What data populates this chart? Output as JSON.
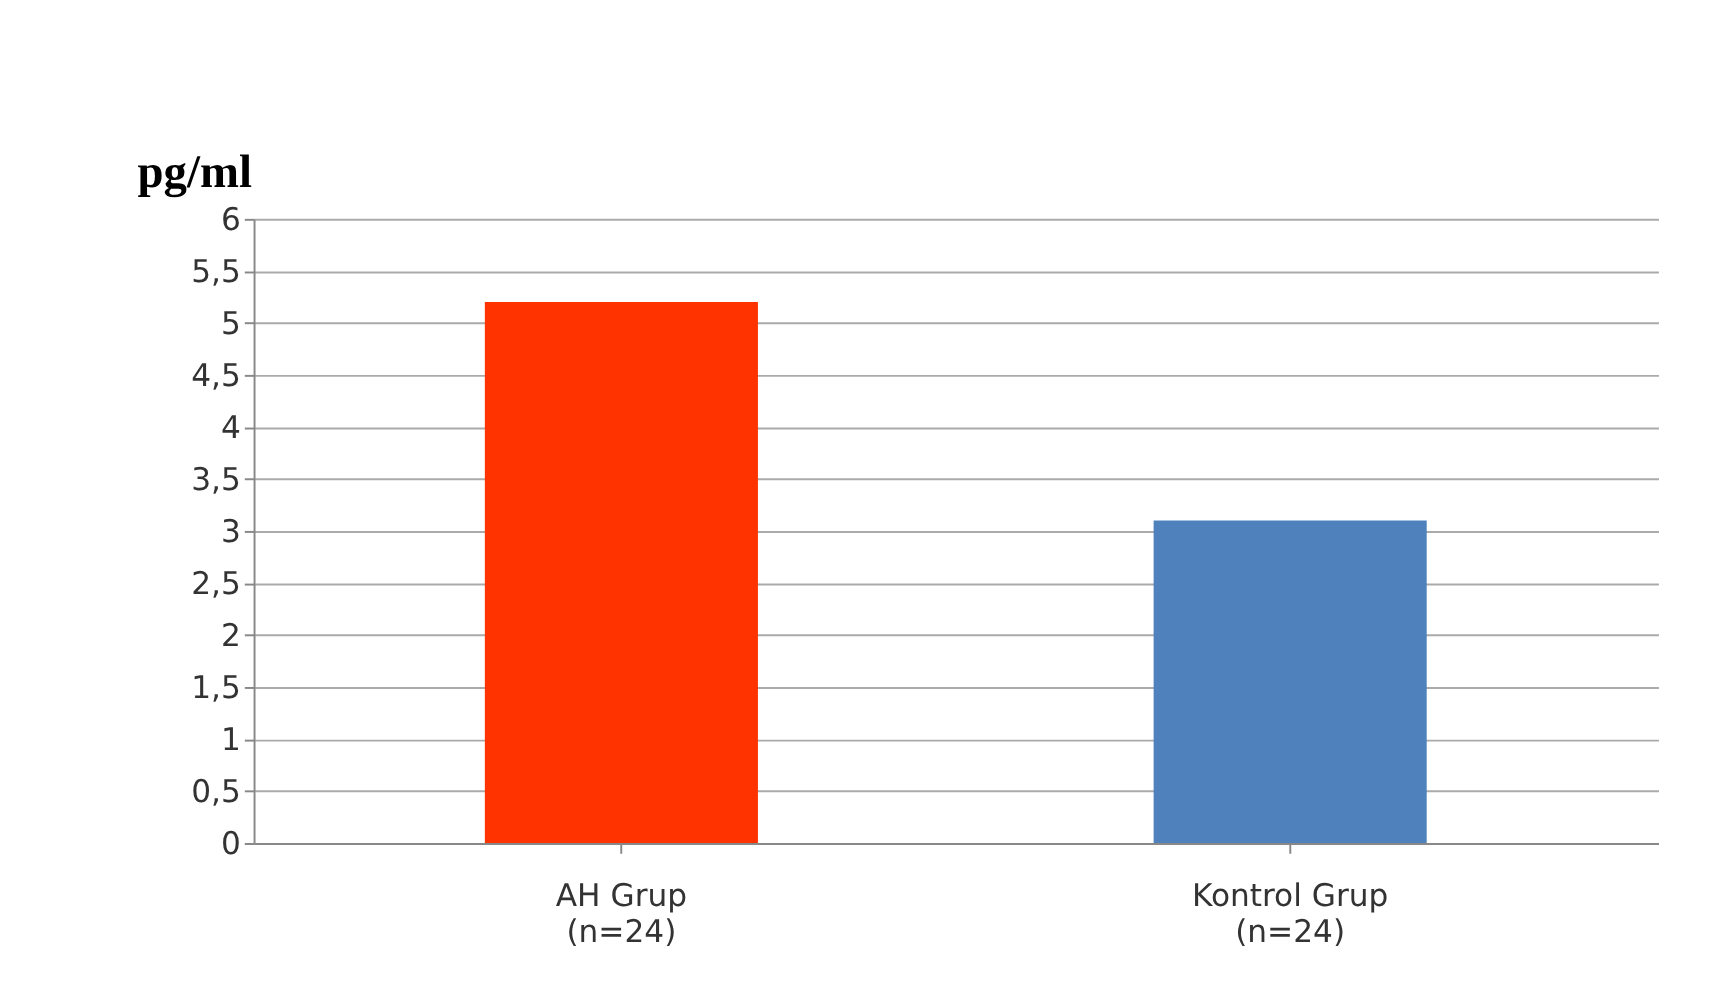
{
  "chart_data": {
    "type": "bar",
    "ylabel": "pg/ml",
    "categories": [
      "AH Grup\n(n=24)",
      "Kontrol Grup\n(n=24)"
    ],
    "values": [
      5.2,
      3.1
    ],
    "colors": [
      "#ff3300",
      "#4f81bd"
    ],
    "ylim": [
      0,
      6
    ],
    "yticks": [
      0,
      {
        "value": 0.5,
        "label": "0,5"
      },
      1,
      {
        "value": 1.5,
        "label": "1,5"
      },
      2,
      {
        "value": 2.5,
        "label": "2,5"
      },
      3,
      {
        "value": 3.5,
        "label": "3,5"
      },
      4,
      {
        "value": 4.5,
        "label": "4,5"
      },
      5,
      {
        "value": 5.5,
        "label": "5,5"
      },
      6
    ],
    "grid": "y"
  }
}
